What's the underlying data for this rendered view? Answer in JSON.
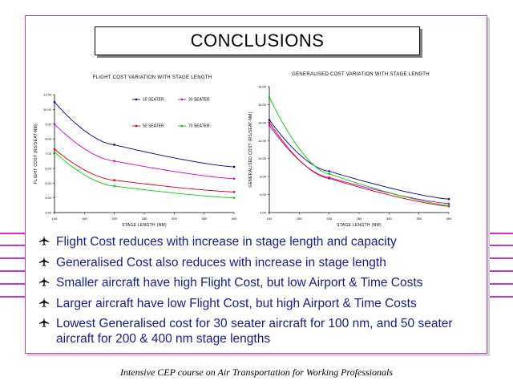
{
  "slide": {
    "title": "CONCLUSIONS",
    "footer": "Intensive CEP course on Air Transportation for Working Professionals",
    "bullets": [
      "Flight Cost reduces with increase in stage length and capacity",
      "Generalised Cost also reduces with increase in stage length",
      "Smaller aircraft have high Flight Cost, but low Airport & Time Costs",
      "Larger aircraft have low  Flight Cost, but high Airport & Time Costs",
      "Lowest Generalised cost for 30 seater aircraft for 100 nm, and 50 seater aircraft for 200 & 400 nm stage lengths"
    ],
    "colors": {
      "accent": "#cc33cc",
      "bullet_text": "#1a1a8c"
    }
  },
  "chart_data": [
    {
      "type": "line",
      "title": "FLIGHT COST VARIATION WITH STAGE LENGTH",
      "xlabel": "STAGE LENGTH (NM)",
      "ylabel": "FLIGHT COST (RS/SEAT-NM)",
      "xlim": [
        100,
        400
      ],
      "ylim": [
        3,
        11
      ],
      "x_ticks": [
        "100",
        "150",
        "200",
        "250",
        "300",
        "350",
        "400"
      ],
      "y_ticks": [
        "3.00",
        "4.00",
        "5.00",
        "6.00",
        "7.00",
        "8.00",
        "9.00",
        "10.00",
        "11.00"
      ],
      "legend": "inside-top",
      "grid": false,
      "series": [
        {
          "name": "15 SEATER",
          "color": "#000080",
          "x": [
            100,
            200,
            400
          ],
          "values": [
            10.5,
            7.6,
            6.1
          ]
        },
        {
          "name": "30 SEATER",
          "color": "#cc00cc",
          "x": [
            100,
            200,
            400
          ],
          "values": [
            9.0,
            6.5,
            5.3
          ]
        },
        {
          "name": "50 SEATER",
          "color": "#cc0000",
          "x": [
            100,
            200,
            400
          ],
          "values": [
            7.3,
            5.2,
            4.4
          ]
        },
        {
          "name": "70 SEATER",
          "color": "#00cc00",
          "x": [
            100,
            200,
            400
          ],
          "values": [
            7.1,
            4.8,
            4.0
          ]
        }
      ]
    },
    {
      "type": "line",
      "title": "GENERALISED COST VARIATION WITH STAGE LENGTH",
      "xlabel": "STAGE LENGTH (NM)",
      "ylabel": "GENERALISED COST (RS/SEAT-NM)",
      "xlim": [
        100,
        400
      ],
      "ylim": [
        4,
        18
      ],
      "x_ticks": [
        "100",
        "150",
        "200",
        "250",
        "300",
        "350",
        "400"
      ],
      "y_ticks": [
        "4.00",
        "6.00",
        "8.00",
        "10.00",
        "12.00",
        "14.00",
        "16.00",
        "18.00"
      ],
      "grid": false,
      "series": [
        {
          "name": "15 SEATER",
          "color": "#000080",
          "x": [
            100,
            200,
            400
          ],
          "values": [
            14.3,
            8.6,
            5.5
          ]
        },
        {
          "name": "30 SEATER",
          "color": "#cc00cc",
          "x": [
            100,
            200,
            400
          ],
          "values": [
            13.7,
            7.9,
            5.0
          ]
        },
        {
          "name": "50 SEATER",
          "color": "#cc0000",
          "x": [
            100,
            200,
            400
          ],
          "values": [
            14.0,
            7.8,
            4.7
          ]
        },
        {
          "name": "70 SEATER",
          "color": "#00cc00",
          "x": [
            100,
            200,
            400
          ],
          "values": [
            16.8,
            8.3,
            4.8
          ]
        }
      ]
    }
  ]
}
